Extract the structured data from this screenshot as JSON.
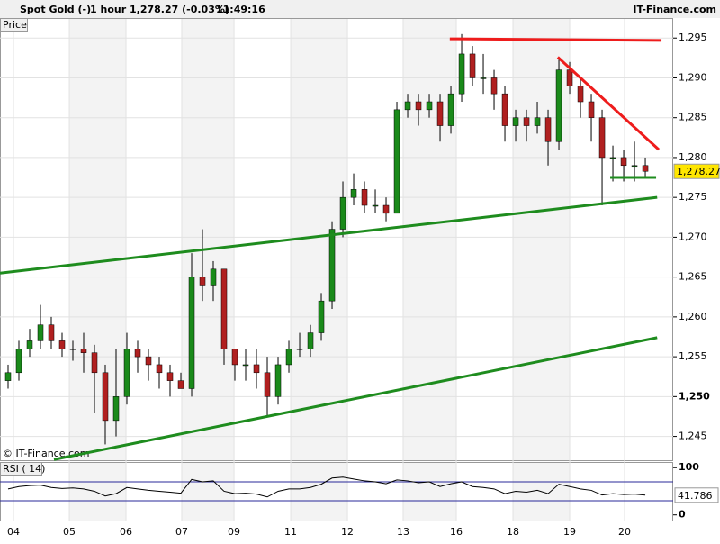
{
  "header": {
    "title": "Spot Gold (-)",
    "interval": "1 hour",
    "quote": "1,278.27 (-0.03%)",
    "time": "11:49:16",
    "source": "IT-Finance.com"
  },
  "chart_data": [
    {
      "type": "candlestick",
      "panel_label": "Price",
      "copyright": "© IT-Finance.com",
      "up_color": "#1a8a1a",
      "down_color": "#b02020",
      "open": [
        1252,
        1253,
        1256,
        1257,
        1259,
        1257,
        1256,
        1256,
        1255.5,
        1253,
        1247,
        1250,
        1256,
        1255,
        1254,
        1253,
        1252,
        1251,
        1265,
        1264,
        1266,
        1256,
        1254,
        1254,
        1253,
        1250,
        1254,
        1256,
        1256,
        1258,
        1262,
        1271,
        1275,
        1276,
        1274,
        1274,
        1273,
        1286,
        1287,
        1286,
        1287,
        1284,
        1288,
        1293,
        1290,
        1290,
        1288,
        1284,
        1285,
        1284,
        1285,
        1282,
        1291,
        1289,
        1287,
        1285,
        1280,
        1280,
        1279,
        1279
      ],
      "high": [
        1254,
        1257,
        1258.5,
        1261.5,
        1260,
        1258,
        1257,
        1258,
        1256.5,
        1254,
        1256,
        1258,
        1257,
        1256,
        1255,
        1254,
        1253,
        1268,
        1271,
        1267,
        1266,
        1256,
        1256,
        1256,
        1255,
        1255,
        1257,
        1258,
        1259,
        1263,
        1272,
        1277,
        1278,
        1277,
        1276,
        1275,
        1287,
        1288,
        1288,
        1288,
        1288,
        1289,
        1295.5,
        1294,
        1293,
        1291,
        1289,
        1286,
        1286,
        1287,
        1286,
        1292.5,
        1292,
        1290,
        1288,
        1286,
        1281.5,
        1281,
        1282,
        1280
      ],
      "low": [
        1251,
        1252,
        1255,
        1256,
        1256,
        1255,
        1254.5,
        1253,
        1248,
        1244,
        1245,
        1249,
        1253,
        1252,
        1251,
        1250,
        1251,
        1250,
        1262,
        1262,
        1254,
        1252,
        1252,
        1251,
        1247.5,
        1249,
        1253,
        1255,
        1255,
        1257,
        1261,
        1270,
        1274,
        1273,
        1273,
        1272,
        1273,
        1285,
        1284,
        1285,
        1282,
        1283,
        1287,
        1289,
        1288,
        1286,
        1282,
        1282,
        1282,
        1283,
        1279,
        1281,
        1288,
        1285,
        1282,
        1274,
        1277,
        1277,
        1277,
        1277.5
      ],
      "close": [
        1253,
        1256,
        1257,
        1259,
        1257,
        1256,
        1256,
        1255.5,
        1253,
        1247,
        1250,
        1256,
        1255,
        1254,
        1253,
        1252,
        1251,
        1265,
        1264,
        1266,
        1256,
        1254,
        1254,
        1253,
        1250,
        1254,
        1256,
        1256,
        1258,
        1262,
        1271,
        1275,
        1276,
        1274,
        1274,
        1273,
        1286,
        1287,
        1286,
        1287,
        1284,
        1288,
        1293,
        1290,
        1290,
        1288,
        1284,
        1285,
        1284,
        1285,
        1282,
        1291,
        1289,
        1287,
        1285,
        1280,
        1280,
        1279,
        1279,
        1278.27
      ],
      "xlim": [
        -0.75,
        61.58
      ],
      "xticks": [
        {
          "value": 0.5,
          "label": "04"
        },
        {
          "value": 5.67,
          "label": "05"
        },
        {
          "value": 10.92,
          "label": "06"
        },
        {
          "value": 16.08,
          "label": "07"
        },
        {
          "value": 20.92,
          "label": "09"
        },
        {
          "value": 26.17,
          "label": "11"
        },
        {
          "value": 31.42,
          "label": "12"
        },
        {
          "value": 36.58,
          "label": "13"
        },
        {
          "value": 41.5,
          "label": "16"
        },
        {
          "value": 46.75,
          "label": "18"
        },
        {
          "value": 52,
          "label": "19"
        },
        {
          "value": 57.08,
          "label": "20"
        }
      ],
      "ylim": [
        1241.9,
        1297.4
      ],
      "yticks": [
        {
          "value": 1245,
          "label": "1,245"
        },
        {
          "value": 1250,
          "label": "1,250"
        },
        {
          "value": 1255,
          "label": "1,255"
        },
        {
          "value": 1260,
          "label": "1,260"
        },
        {
          "value": 1265,
          "label": "1,265"
        },
        {
          "value": 1270,
          "label": "1,270"
        },
        {
          "value": 1275,
          "label": "1,275"
        },
        {
          "value": 1280,
          "label": "1,280"
        },
        {
          "value": 1285,
          "label": "1,285"
        },
        {
          "value": 1290,
          "label": "1,290"
        },
        {
          "value": 1295,
          "label": "1,295"
        }
      ],
      "last_price": {
        "value": 1278.27,
        "label": "1,278.27"
      },
      "trendlines": [
        {
          "color": "#1e8c1e",
          "x": [
            -0.75,
            60.1
          ],
          "y": [
            1265.5,
            1275
          ]
        },
        {
          "color": "#1e8c1e",
          "x": [
            4.25,
            60.1
          ],
          "y": [
            1242.1,
            1257.4
          ]
        },
        {
          "color": "#ee1c1c",
          "x": [
            40.9,
            60.5
          ],
          "y": [
            1294.9,
            1294.7
          ]
        },
        {
          "color": "#ee1c1c",
          "x": [
            50.9,
            60.25
          ],
          "y": [
            1292.6,
            1281
          ]
        },
        {
          "color": "#1e8c1e",
          "x": [
            55.75,
            60
          ],
          "y": [
            1277.5,
            1277.5
          ]
        }
      ]
    },
    {
      "type": "line",
      "panel_label": "RSI ( 14)",
      "color": "#000000",
      "values": [
        55,
        60,
        62,
        63,
        58,
        56,
        57,
        55,
        50,
        40,
        45,
        58,
        55,
        52,
        50,
        48,
        46,
        75,
        70,
        72,
        50,
        45,
        46,
        44,
        38,
        50,
        55,
        55,
        58,
        65,
        78,
        80,
        76,
        72,
        70,
        66,
        74,
        72,
        68,
        70,
        60,
        66,
        70,
        60,
        58,
        55,
        45,
        50,
        48,
        52,
        45,
        65,
        60,
        55,
        52,
        42,
        45,
        43,
        44,
        41.786
      ],
      "ylim": [
        -12,
        110
      ],
      "yticks": [
        100,
        0
      ],
      "levels": [
        70,
        30
      ],
      "level_color": "#2a2a9a"
    }
  ]
}
